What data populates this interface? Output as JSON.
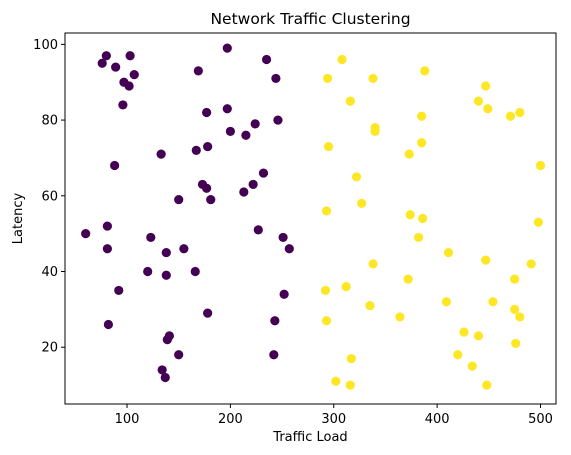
{
  "chart_data": {
    "type": "scatter",
    "title": "Network Traffic Clustering",
    "xlabel": "Traffic Load",
    "ylabel": "Latency",
    "xlim": [
      40,
      515
    ],
    "ylim": [
      5,
      103
    ],
    "x_ticks": [
      100,
      200,
      300,
      400,
      500
    ],
    "y_ticks": [
      20,
      40,
      60,
      80,
      100
    ],
    "x_tick_labels": [
      "100",
      "200",
      "300",
      "400",
      "500"
    ],
    "y_tick_labels": [
      "20",
      "40",
      "60",
      "80",
      "100"
    ],
    "grid": false,
    "legend": false,
    "series": [
      {
        "color": "#440154",
        "points": [
          [
            80,
            97
          ],
          [
            76,
            95
          ],
          [
            89,
            94
          ],
          [
            103,
            97
          ],
          [
            107,
            92
          ],
          [
            97,
            90
          ],
          [
            102,
            89
          ],
          [
            96,
            84
          ],
          [
            169,
            93
          ],
          [
            197,
            99
          ],
          [
            235,
            96
          ],
          [
            244,
            91
          ],
          [
            177,
            82
          ],
          [
            197,
            83
          ],
          [
            200,
            77
          ],
          [
            215,
            76
          ],
          [
            224,
            79
          ],
          [
            246,
            80
          ],
          [
            133,
            71
          ],
          [
            167,
            72
          ],
          [
            178,
            73
          ],
          [
            88,
            68
          ],
          [
            173,
            63
          ],
          [
            177,
            62
          ],
          [
            181,
            59
          ],
          [
            213,
            61
          ],
          [
            222,
            63
          ],
          [
            232,
            66
          ],
          [
            150,
            59
          ],
          [
            60,
            50
          ],
          [
            81,
            52
          ],
          [
            81,
            46
          ],
          [
            123,
            49
          ],
          [
            138,
            45
          ],
          [
            155,
            46
          ],
          [
            227,
            51
          ],
          [
            251,
            49
          ],
          [
            257,
            46
          ],
          [
            120,
            40
          ],
          [
            138,
            39
          ],
          [
            166,
            40
          ],
          [
            92,
            35
          ],
          [
            252,
            34
          ],
          [
            82,
            26
          ],
          [
            178,
            29
          ],
          [
            243,
            27
          ],
          [
            141,
            23
          ],
          [
            139,
            22
          ],
          [
            150,
            18
          ],
          [
            242,
            18
          ],
          [
            134,
            14
          ],
          [
            137,
            12
          ]
        ]
      },
      {
        "color": "#fde725",
        "points": [
          [
            308,
            96
          ],
          [
            294,
            91
          ],
          [
            338,
            91
          ],
          [
            388,
            93
          ],
          [
            447,
            89
          ],
          [
            440,
            85
          ],
          [
            449,
            83
          ],
          [
            316,
            85
          ],
          [
            471,
            81
          ],
          [
            480,
            82
          ],
          [
            385,
            81
          ],
          [
            340,
            78
          ],
          [
            340,
            77
          ],
          [
            385,
            74
          ],
          [
            373,
            71
          ],
          [
            295,
            73
          ],
          [
            500,
            68
          ],
          [
            322,
            65
          ],
          [
            327,
            58
          ],
          [
            293,
            56
          ],
          [
            374,
            55
          ],
          [
            386,
            54
          ],
          [
            498,
            53
          ],
          [
            382,
            49
          ],
          [
            411,
            45
          ],
          [
            338,
            42
          ],
          [
            447,
            43
          ],
          [
            491,
            42
          ],
          [
            372,
            38
          ],
          [
            475,
            38
          ],
          [
            292,
            35
          ],
          [
            312,
            36
          ],
          [
            335,
            31
          ],
          [
            409,
            32
          ],
          [
            454,
            32
          ],
          [
            475,
            30
          ],
          [
            480,
            28
          ],
          [
            293,
            27
          ],
          [
            364,
            28
          ],
          [
            426,
            24
          ],
          [
            440,
            23
          ],
          [
            476,
            21
          ],
          [
            420,
            18
          ],
          [
            317,
            17
          ],
          [
            434,
            15
          ],
          [
            302,
            11
          ],
          [
            316,
            10
          ],
          [
            448,
            10
          ]
        ]
      }
    ]
  }
}
